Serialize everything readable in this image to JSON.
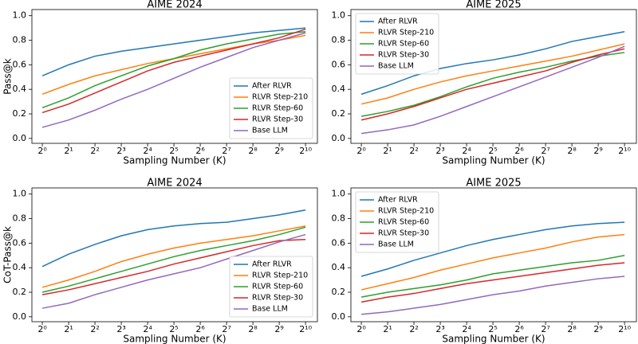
{
  "chart_data": [
    {
      "type": "line",
      "title": "AIME 2024",
      "xlabel": "Sampling Number (K)",
      "ylabel": "Pass@k",
      "x": [
        1,
        2,
        4,
        8,
        16,
        32,
        64,
        128,
        256,
        512,
        1024
      ],
      "xscale": "log2",
      "xlim": [
        0.76,
        1400
      ],
      "xticks": [
        {
          "value": 1,
          "label": "2⁰"
        },
        {
          "value": 2,
          "label": "2¹"
        },
        {
          "value": 4,
          "label": "2²"
        },
        {
          "value": 8,
          "label": "2³"
        },
        {
          "value": 16,
          "label": "2⁴"
        },
        {
          "value": 32,
          "label": "2⁵"
        },
        {
          "value": 64,
          "label": "2⁶"
        },
        {
          "value": 128,
          "label": "2⁷"
        },
        {
          "value": 256,
          "label": "2⁸"
        },
        {
          "value": 512,
          "label": "2⁹"
        },
        {
          "value": 1024,
          "label": "2¹⁰"
        }
      ],
      "ylim": [
        -0.04,
        1.05
      ],
      "yticks": [
        {
          "value": 0,
          "label": "0.0"
        },
        0.2,
        0.4,
        0.6,
        0.8,
        {
          "value": 1,
          "label": "1.0"
        }
      ],
      "legend": "lower right",
      "series": [
        {
          "name": "After RLVR",
          "color": "#1f77b4",
          "values": [
            0.51,
            0.6,
            0.67,
            0.71,
            0.74,
            0.77,
            0.8,
            0.83,
            0.86,
            0.88,
            0.9
          ]
        },
        {
          "name": "RLVR Step-210",
          "color": "#ff7f0e",
          "values": [
            0.36,
            0.44,
            0.51,
            0.56,
            0.61,
            0.65,
            0.69,
            0.73,
            0.77,
            0.8,
            0.84
          ]
        },
        {
          "name": "RLVR Step-60",
          "color": "#2ca02c",
          "values": [
            0.25,
            0.33,
            0.43,
            0.51,
            0.59,
            0.65,
            0.72,
            0.77,
            0.81,
            0.85,
            0.87
          ]
        },
        {
          "name": "RLVR Step-30",
          "color": "#d62728",
          "values": [
            0.21,
            0.28,
            0.37,
            0.46,
            0.55,
            0.62,
            0.67,
            0.72,
            0.77,
            0.82,
            0.89
          ]
        },
        {
          "name": "Base LLM",
          "color": "#9467bd",
          "values": [
            0.09,
            0.15,
            0.23,
            0.32,
            0.4,
            0.49,
            0.58,
            0.66,
            0.74,
            0.8,
            0.86
          ]
        }
      ]
    },
    {
      "type": "line",
      "title": "AIME 2025",
      "xlabel": "Sampling Number (K)",
      "x": [
        1,
        2,
        4,
        8,
        16,
        32,
        64,
        128,
        256,
        512,
        1024
      ],
      "xscale": "log2",
      "xlim": [
        0.76,
        1400
      ],
      "xticks": [
        {
          "value": 1,
          "label": "2⁰"
        },
        {
          "value": 2,
          "label": "2¹"
        },
        {
          "value": 4,
          "label": "2²"
        },
        {
          "value": 8,
          "label": "2³"
        },
        {
          "value": 16,
          "label": "2⁴"
        },
        {
          "value": 32,
          "label": "2⁵"
        },
        {
          "value": 64,
          "label": "2⁶"
        },
        {
          "value": 128,
          "label": "2⁷"
        },
        {
          "value": 256,
          "label": "2⁸"
        },
        {
          "value": 512,
          "label": "2⁹"
        },
        {
          "value": 1024,
          "label": "2¹⁰"
        }
      ],
      "ylim": [
        -0.04,
        1.05
      ],
      "yticks": [
        {
          "value": 0,
          "label": "0.0"
        },
        0.2,
        0.4,
        0.6,
        0.8,
        {
          "value": 1,
          "label": "1.0"
        }
      ],
      "legend": "upper left",
      "series": [
        {
          "name": "After RLVR",
          "color": "#1f77b4",
          "values": [
            0.36,
            0.43,
            0.51,
            0.57,
            0.61,
            0.64,
            0.68,
            0.73,
            0.79,
            0.83,
            0.87
          ]
        },
        {
          "name": "RLVR Step-210",
          "color": "#ff7f0e",
          "values": [
            0.28,
            0.33,
            0.4,
            0.46,
            0.51,
            0.55,
            0.59,
            0.63,
            0.67,
            0.72,
            0.77
          ]
        },
        {
          "name": "RLVR Step-60",
          "color": "#2ca02c",
          "values": [
            0.18,
            0.22,
            0.27,
            0.34,
            0.42,
            0.49,
            0.54,
            0.58,
            0.63,
            0.67,
            0.7
          ]
        },
        {
          "name": "RLVR Step-30",
          "color": "#d62728",
          "values": [
            0.15,
            0.2,
            0.26,
            0.33,
            0.4,
            0.45,
            0.5,
            0.55,
            0.62,
            0.68,
            0.73
          ]
        },
        {
          "name": "Base LLM",
          "color": "#9467bd",
          "values": [
            0.04,
            0.07,
            0.11,
            0.18,
            0.26,
            0.34,
            0.42,
            0.5,
            0.58,
            0.66,
            0.75
          ]
        }
      ]
    },
    {
      "type": "line",
      "title": "AIME 2024",
      "xlabel": "Sampling Number (K)",
      "ylabel": "CoT-Pass@k",
      "x": [
        1,
        2,
        4,
        8,
        16,
        32,
        64,
        128,
        256,
        512,
        1024
      ],
      "xscale": "log2",
      "xlim": [
        0.76,
        1400
      ],
      "xticks": [
        {
          "value": 1,
          "label": "2⁰"
        },
        {
          "value": 2,
          "label": "2¹"
        },
        {
          "value": 4,
          "label": "2²"
        },
        {
          "value": 8,
          "label": "2³"
        },
        {
          "value": 16,
          "label": "2⁴"
        },
        {
          "value": 32,
          "label": "2⁵"
        },
        {
          "value": 64,
          "label": "2⁶"
        },
        {
          "value": 128,
          "label": "2⁷"
        },
        {
          "value": 256,
          "label": "2⁸"
        },
        {
          "value": 512,
          "label": "2⁹"
        },
        {
          "value": 1024,
          "label": "2¹⁰"
        }
      ],
      "ylim": [
        -0.04,
        1.05
      ],
      "yticks": [
        {
          "value": 0,
          "label": "0.0"
        },
        0.2,
        0.4,
        0.6,
        0.8,
        {
          "value": 1,
          "label": "1.0"
        }
      ],
      "legend": "lower right",
      "series": [
        {
          "name": "After RLVR",
          "color": "#1f77b4",
          "values": [
            0.41,
            0.51,
            0.59,
            0.66,
            0.71,
            0.74,
            0.76,
            0.77,
            0.8,
            0.83,
            0.87
          ]
        },
        {
          "name": "RLVR Step-210",
          "color": "#ff7f0e",
          "values": [
            0.24,
            0.3,
            0.37,
            0.45,
            0.51,
            0.56,
            0.6,
            0.63,
            0.66,
            0.7,
            0.74
          ]
        },
        {
          "name": "RLVR Step-60",
          "color": "#2ca02c",
          "values": [
            0.2,
            0.25,
            0.31,
            0.37,
            0.43,
            0.49,
            0.54,
            0.58,
            0.62,
            0.67,
            0.73
          ]
        },
        {
          "name": "RLVR Step-30",
          "color": "#d62728",
          "values": [
            0.18,
            0.22,
            0.27,
            0.32,
            0.37,
            0.43,
            0.48,
            0.53,
            0.58,
            0.62,
            0.63
          ]
        },
        {
          "name": "Base LLM",
          "color": "#9467bd",
          "values": [
            0.07,
            0.11,
            0.18,
            0.24,
            0.3,
            0.35,
            0.4,
            0.47,
            0.54,
            0.61,
            0.67
          ]
        }
      ]
    },
    {
      "type": "line",
      "title": "AIME 2025",
      "xlabel": "Sampling Number (K)",
      "x": [
        1,
        2,
        4,
        8,
        16,
        32,
        64,
        128,
        256,
        512,
        1024
      ],
      "xscale": "log2",
      "xlim": [
        0.76,
        1400
      ],
      "xticks": [
        {
          "value": 1,
          "label": "2⁰"
        },
        {
          "value": 2,
          "label": "2¹"
        },
        {
          "value": 4,
          "label": "2²"
        },
        {
          "value": 8,
          "label": "2³"
        },
        {
          "value": 16,
          "label": "2⁴"
        },
        {
          "value": 32,
          "label": "2⁵"
        },
        {
          "value": 64,
          "label": "2⁶"
        },
        {
          "value": 128,
          "label": "2⁷"
        },
        {
          "value": 256,
          "label": "2⁸"
        },
        {
          "value": 512,
          "label": "2⁹"
        },
        {
          "value": 1024,
          "label": "2¹⁰"
        }
      ],
      "ylim": [
        -0.04,
        1.05
      ],
      "yticks": [
        {
          "value": 0,
          "label": "0.0"
        },
        0.2,
        0.4,
        0.6,
        0.8,
        {
          "value": 1,
          "label": "1.0"
        }
      ],
      "legend": "upper left",
      "series": [
        {
          "name": "After RLVR",
          "color": "#1f77b4",
          "values": [
            0.33,
            0.39,
            0.46,
            0.52,
            0.58,
            0.63,
            0.67,
            0.71,
            0.74,
            0.76,
            0.77
          ]
        },
        {
          "name": "RLVR Step-210",
          "color": "#ff7f0e",
          "values": [
            0.22,
            0.27,
            0.32,
            0.38,
            0.43,
            0.48,
            0.52,
            0.56,
            0.61,
            0.65,
            0.67
          ]
        },
        {
          "name": "RLVR Step-60",
          "color": "#2ca02c",
          "values": [
            0.16,
            0.2,
            0.23,
            0.26,
            0.3,
            0.35,
            0.38,
            0.41,
            0.44,
            0.46,
            0.5
          ]
        },
        {
          "name": "RLVR Step-30",
          "color": "#d62728",
          "values": [
            0.12,
            0.16,
            0.19,
            0.23,
            0.27,
            0.3,
            0.33,
            0.36,
            0.39,
            0.42,
            0.44
          ]
        },
        {
          "name": "Base LLM",
          "color": "#9467bd",
          "values": [
            0.02,
            0.04,
            0.07,
            0.1,
            0.14,
            0.18,
            0.21,
            0.25,
            0.28,
            0.31,
            0.33
          ]
        }
      ]
    }
  ]
}
